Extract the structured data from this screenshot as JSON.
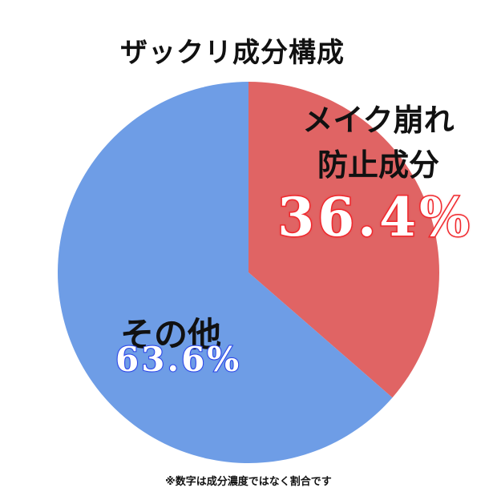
{
  "chart_data": {
    "type": "pie",
    "title": "ザックリ成分構成",
    "slices": [
      {
        "label_line1": "メイク崩れ",
        "label_line2": "防止成分",
        "value": 36.4,
        "display": "36.4%",
        "color": "#e06464"
      },
      {
        "label": "その他",
        "value": 63.6,
        "display": "63.6%",
        "color": "#6e9de6"
      }
    ],
    "note": "※数字は成分濃度ではなく割合です"
  }
}
